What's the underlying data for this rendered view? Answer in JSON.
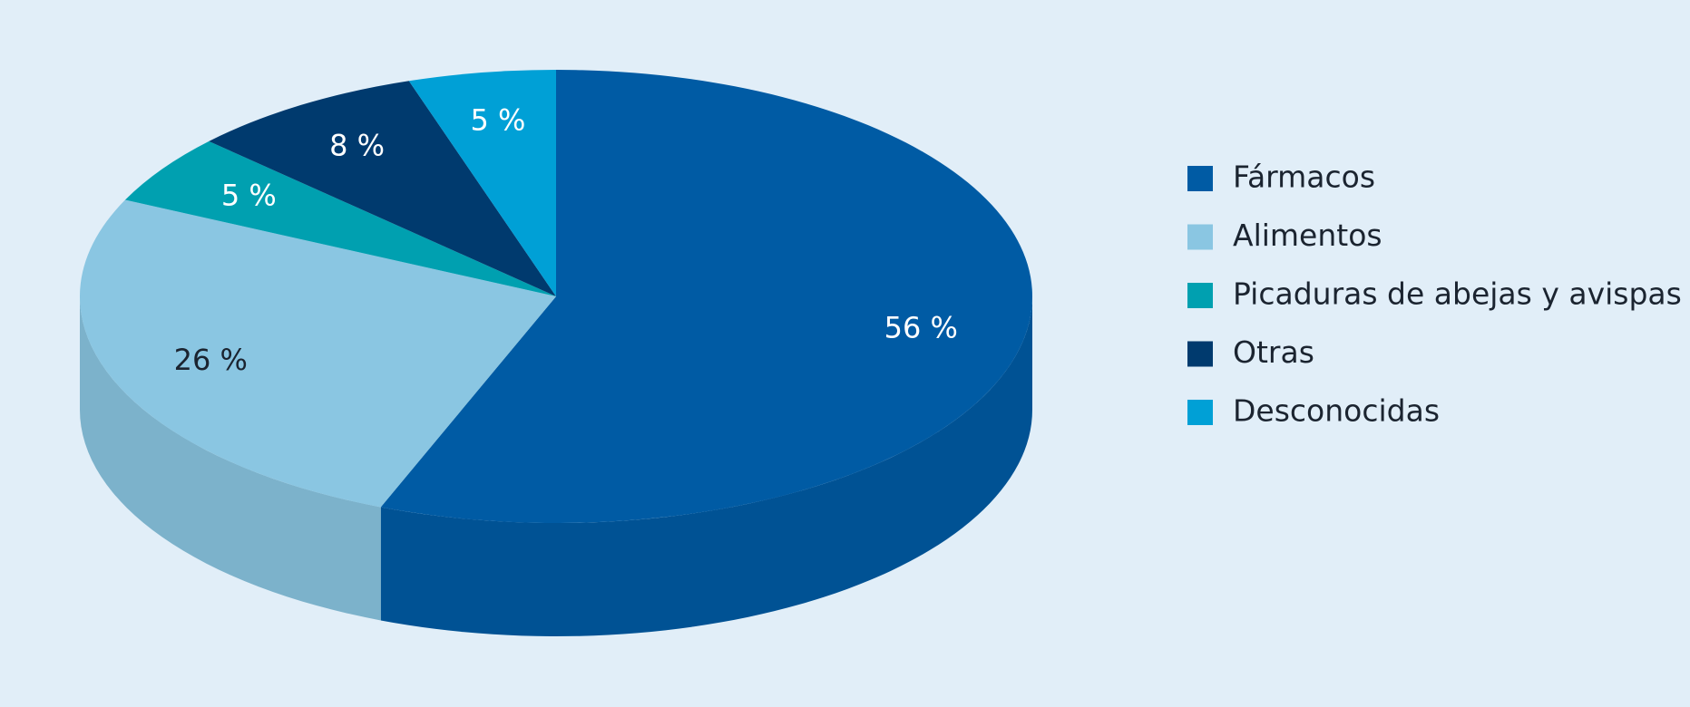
{
  "chart_data": {
    "type": "pie",
    "categories": [
      "Fármacos",
      "Alimentos",
      "Picaduras de abejas y avispas",
      "Otras",
      "Desconocidas"
    ],
    "values": [
      56,
      26,
      5,
      8,
      5
    ],
    "value_labels": [
      "56 %",
      "26 %",
      "5 %",
      "8 %",
      "5 %"
    ],
    "colors": [
      "#005ba4",
      "#8ac6e2",
      "#00a0b0",
      "#003a6e",
      "#00a0d6"
    ],
    "legend": "right"
  }
}
